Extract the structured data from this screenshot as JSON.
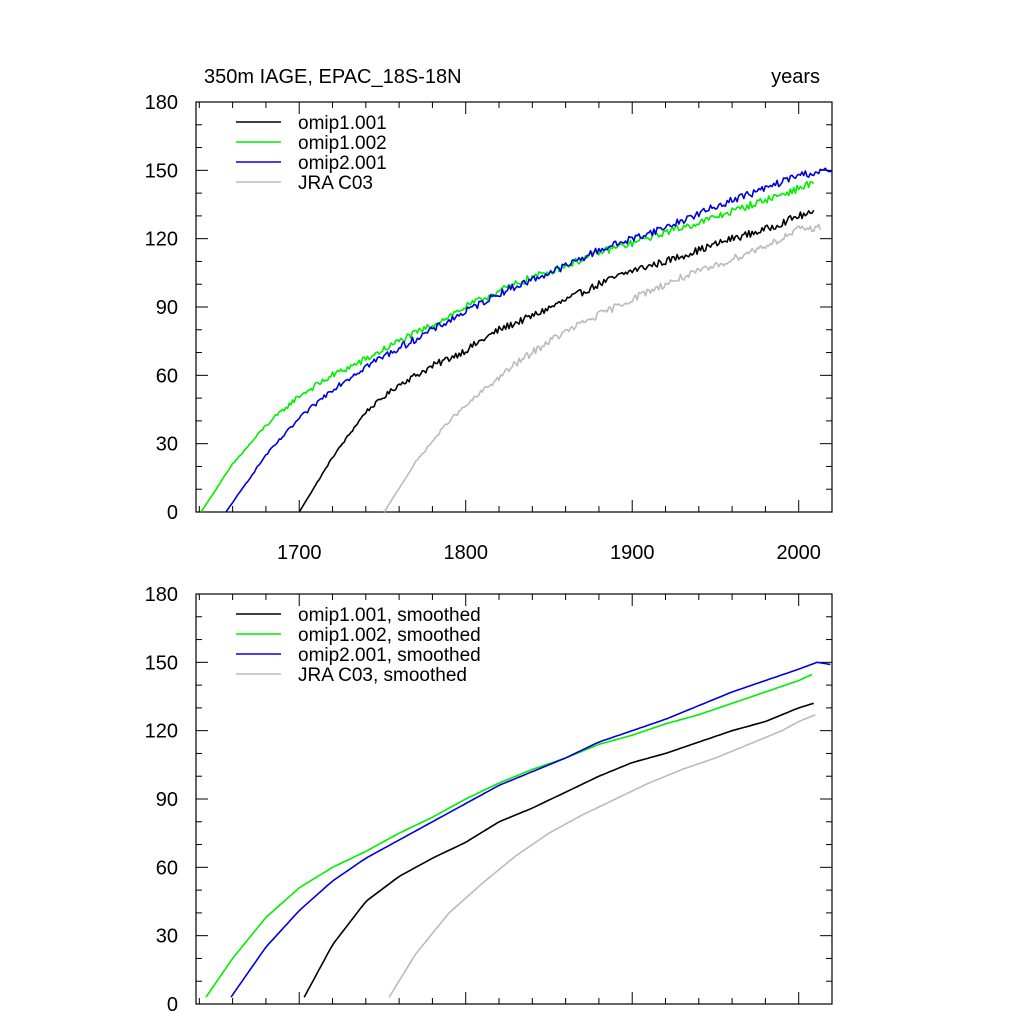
{
  "chart_data": [
    {
      "type": "line",
      "title": "350m IAGE, EPAC_18S-18N",
      "title_right": "years",
      "xlim": [
        1638,
        2020
      ],
      "ylim": [
        0,
        180
      ],
      "yticks": [
        0,
        30,
        60,
        90,
        120,
        150,
        180
      ],
      "xticks": [
        1700,
        1800,
        1900,
        2000
      ],
      "xtick_labels": [
        "1700",
        "1800",
        "1900",
        "2000"
      ],
      "grid": false,
      "legend": "top-left",
      "smoothed": false,
      "series": [
        {
          "name": "omip1.001",
          "color": "#000000",
          "x_start": 1700,
          "x_end": 2009,
          "x": [
            1700,
            1720,
            1740,
            1760,
            1780,
            1800,
            1820,
            1840,
            1860,
            1880,
            1900,
            1920,
            1940,
            1960,
            1980,
            2000,
            2009
          ],
          "y": [
            0,
            24,
            44,
            56,
            64,
            71,
            80,
            86,
            93,
            100,
            106,
            110,
            115,
            120,
            124,
            130,
            131
          ]
        },
        {
          "name": "omip1.002",
          "color": "#00ee00",
          "x_start": 1641,
          "x_end": 2009,
          "x": [
            1641,
            1660,
            1680,
            1700,
            1720,
            1740,
            1760,
            1780,
            1800,
            1820,
            1840,
            1860,
            1880,
            1900,
            1920,
            1940,
            1960,
            1980,
            2000,
            2009
          ],
          "y": [
            0,
            21,
            38,
            51,
            60,
            67,
            75,
            82,
            90,
            97,
            103,
            108,
            114,
            118,
            123,
            127,
            132,
            137,
            142,
            145
          ]
        },
        {
          "name": "omip2.001",
          "color": "#0000dd",
          "x_start": 1656,
          "x_end": 2020,
          "x": [
            1656,
            1680,
            1700,
            1720,
            1740,
            1760,
            1780,
            1800,
            1820,
            1840,
            1860,
            1880,
            1900,
            1920,
            1940,
            1960,
            1980,
            2000,
            2020
          ],
          "y": [
            0,
            25,
            41,
            54,
            64,
            72,
            80,
            88,
            96,
            102,
            108,
            115,
            120,
            125,
            131,
            137,
            142,
            148,
            150
          ]
        },
        {
          "name": "JRA C03",
          "color": "#bbbbbb",
          "x_start": 1751,
          "x_end": 2013,
          "x": [
            1751,
            1770,
            1790,
            1810,
            1830,
            1850,
            1870,
            1890,
            1910,
            1930,
            1950,
            1970,
            1990,
            2000,
            2013
          ],
          "y": [
            0,
            22,
            40,
            53,
            65,
            75,
            83,
            90,
            97,
            103,
            108,
            114,
            120,
            124,
            125
          ]
        }
      ]
    },
    {
      "type": "line",
      "xlim": [
        1638,
        2020
      ],
      "ylim": [
        0,
        180
      ],
      "yticks": [
        0,
        30,
        60,
        90,
        120,
        150,
        180
      ],
      "xticks": [
        1700,
        1800,
        1900,
        2000
      ],
      "xtick_labels": [],
      "grid": false,
      "legend": "top-left",
      "smoothed": true,
      "series": [
        {
          "name": "omip1.001, smoothed",
          "color": "#000000",
          "x": [
            1703,
            1720,
            1740,
            1760,
            1780,
            1800,
            1820,
            1840,
            1860,
            1880,
            1900,
            1920,
            1940,
            1960,
            1980,
            2000,
            2009
          ],
          "y": [
            3,
            26,
            45,
            56,
            64,
            71,
            80,
            86,
            93,
            100,
            106,
            110,
            115,
            120,
            124,
            130,
            132
          ]
        },
        {
          "name": "omip1.002, smoothed",
          "color": "#00ee00",
          "x": [
            1644,
            1660,
            1680,
            1700,
            1720,
            1740,
            1760,
            1780,
            1800,
            1820,
            1840,
            1860,
            1880,
            1900,
            1920,
            1940,
            1960,
            1980,
            2000,
            2009
          ],
          "y": [
            3,
            20,
            38,
            51,
            60,
            67,
            75,
            82,
            90,
            97,
            103,
            108,
            114,
            118,
            123,
            127,
            132,
            137,
            142,
            145
          ]
        },
        {
          "name": "omip2.001, smoothed",
          "color": "#0000dd",
          "x": [
            1659,
            1680,
            1700,
            1720,
            1740,
            1760,
            1780,
            1800,
            1820,
            1840,
            1860,
            1880,
            1900,
            1920,
            1940,
            1960,
            1980,
            2000,
            2011,
            2020
          ],
          "y": [
            3,
            25,
            41,
            54,
            64,
            72,
            80,
            88,
            96,
            102,
            108,
            115,
            120,
            125,
            131,
            137,
            142,
            147,
            150,
            149
          ]
        },
        {
          "name": "JRA C03, smoothed",
          "color": "#bbbbbb",
          "x": [
            1754,
            1770,
            1790,
            1810,
            1830,
            1850,
            1870,
            1890,
            1910,
            1930,
            1950,
            1970,
            1990,
            2000,
            2010
          ],
          "y": [
            3,
            22,
            40,
            53,
            65,
            75,
            83,
            90,
            97,
            103,
            108,
            114,
            120,
            124,
            127
          ]
        }
      ]
    }
  ]
}
